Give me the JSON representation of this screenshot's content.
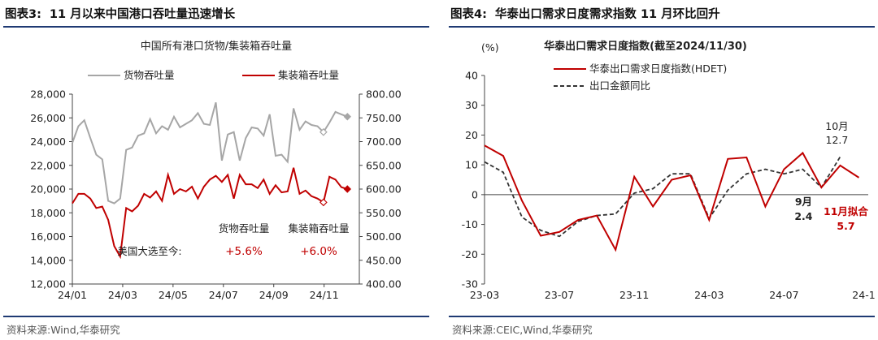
{
  "left": {
    "figure_label": "图表3:",
    "figure_title": "11 月以来中国港口吞吐量迅速增长",
    "source": "资料来源:Wind,华泰研究",
    "colors": {
      "cargo": "#a6a6a6",
      "container": "#c00000"
    },
    "chart_data": {
      "type": "line",
      "title": "中国所有港口货物/集装箱吞吐量",
      "x_tick_labels": [
        "24/01",
        "24/03",
        "24/05",
        "24/07",
        "24/09",
        "24/11"
      ],
      "x_range": [
        0,
        48
      ],
      "y_left": {
        "range": [
          12000,
          28000
        ],
        "ticks": [
          "12,000",
          "14,000",
          "16,000",
          "18,000",
          "20,000",
          "22,000",
          "24,000",
          "26,000",
          "28,000"
        ]
      },
      "y_right": {
        "range": [
          400,
          800
        ],
        "ticks": [
          "400.00",
          "450.00",
          "500.00",
          "550.00",
          "600.00",
          "650.00",
          "700.00",
          "750.00",
          "800.00"
        ]
      },
      "series": [
        {
          "name": "货物吞吐量",
          "axis": "left",
          "x": [
            0,
            1,
            2,
            3,
            4,
            5,
            6,
            7,
            8,
            9,
            10,
            11,
            12,
            13,
            14,
            15,
            16,
            17,
            18,
            19,
            20,
            21,
            22,
            23,
            24,
            25,
            26,
            27,
            28,
            29,
            30,
            31,
            32,
            33,
            34,
            35,
            36,
            37,
            38,
            39,
            40,
            41,
            42,
            43,
            44,
            45,
            46
          ],
          "values": [
            23900,
            25300,
            25800,
            24300,
            22900,
            22500,
            19000,
            18800,
            19200,
            23300,
            23500,
            24500,
            24700,
            25900,
            24700,
            25300,
            25000,
            26100,
            25200,
            25500,
            25800,
            26400,
            25500,
            25400,
            27300,
            22400,
            24600,
            24800,
            22400,
            24300,
            25200,
            25100,
            24500,
            26300,
            22800,
            22900,
            22300,
            26800,
            25000,
            25700,
            25400,
            25300,
            24800,
            25600,
            26500,
            26300,
            26100
          ]
        },
        {
          "name": "集装箱吞吐量",
          "axis": "right",
          "x": [
            0,
            1,
            2,
            3,
            4,
            5,
            6,
            7,
            8,
            9,
            10,
            11,
            12,
            13,
            14,
            15,
            16,
            17,
            18,
            19,
            20,
            21,
            22,
            23,
            24,
            25,
            26,
            27,
            28,
            29,
            30,
            31,
            32,
            33,
            34,
            35,
            36,
            37,
            38,
            39,
            40,
            41,
            42,
            43,
            44,
            45,
            46
          ],
          "values": [
            570,
            590,
            590,
            580,
            560,
            563,
            535,
            480,
            458,
            560,
            553,
            565,
            590,
            582,
            595,
            575,
            630,
            590,
            600,
            595,
            605,
            580,
            605,
            620,
            628,
            615,
            630,
            580,
            630,
            610,
            610,
            602,
            620,
            590,
            608,
            593,
            595,
            645,
            590,
            597,
            585,
            580,
            572,
            626,
            620,
            604,
            600
          ]
        }
      ],
      "legend": [
        "货物吞吐量",
        "集装箱吞吐量"
      ],
      "legend_position": "top",
      "annotation": {
        "row_label": "美国大选至今:",
        "columns": [
          "货物吞吐量",
          "集装箱吞吐量"
        ],
        "values": [
          "+5.6%",
          "+6.0%"
        ]
      }
    }
  },
  "right": {
    "figure_label": "图表4:",
    "figure_title": "华泰出口需求日度需求指数 11 月环比回升",
    "source": "资料来源:CEIC,Wind,华泰研究",
    "colors": {
      "hdet": "#c00000",
      "export": "#333333"
    },
    "chart_data": {
      "type": "line",
      "title": "华泰出口需求日度指数(截至2024/11/30)",
      "ylabel": "(%)",
      "x_tick_labels": [
        "23-03",
        "23-07",
        "23-11",
        "24-03",
        "24-07",
        "24-1"
      ],
      "x_range": [
        0,
        20.5
      ],
      "y_range": [
        -30,
        40
      ],
      "y_ticks": [
        "-30",
        "-20",
        "-10",
        "0",
        "10",
        "20",
        "30",
        "40"
      ],
      "series": [
        {
          "name": "华泰出口需求日度指数(HDET)",
          "x": [
            0,
            1,
            2,
            3,
            4,
            5,
            6,
            7,
            8,
            9,
            10,
            11,
            12,
            13,
            14,
            15,
            16,
            17,
            18,
            19,
            20
          ],
          "values": [
            16.5,
            13.0,
            -2.0,
            -13.8,
            -12.5,
            -8.5,
            -7.0,
            -18.5,
            6.0,
            -4.0,
            5.0,
            6.5,
            -8.5,
            12.0,
            12.5,
            -4.0,
            8.5,
            14.0,
            2.4,
            9.8,
            5.7
          ]
        },
        {
          "name": "出口金额同比",
          "x": [
            0,
            1,
            2,
            3,
            4,
            5,
            6,
            7,
            8,
            9,
            10,
            11,
            12,
            13,
            14,
            15,
            16,
            17,
            18,
            19
          ],
          "values": [
            11.0,
            7.5,
            -7.5,
            -12.0,
            -14.0,
            -9.0,
            -7.0,
            -6.5,
            0.5,
            2.0,
            7.0,
            7.0,
            -8.0,
            1.5,
            7.0,
            8.5,
            7.0,
            8.5,
            2.4,
            12.7
          ]
        }
      ],
      "legend": [
        "华泰出口需求日度指数(HDET)",
        "出口金额同比"
      ],
      "legend_position": "top-left",
      "annotations": [
        {
          "month": "10月",
          "value": "12.7",
          "x": 19,
          "y": 12.7
        },
        {
          "month": "9月",
          "value": "2.4",
          "x": 18,
          "y": 2.4
        },
        {
          "month": "11月拟合",
          "value": "5.7",
          "x": 20,
          "y": 5.7
        }
      ]
    }
  }
}
